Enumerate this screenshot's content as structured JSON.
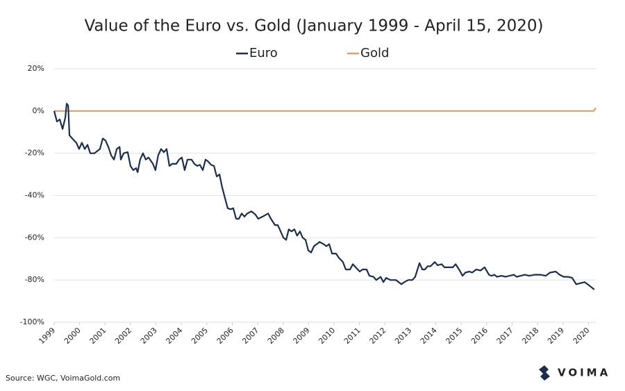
{
  "chart_data": {
    "type": "line",
    "title": "Value of the Euro vs. Gold (January 1999 - April 15, 2020)",
    "source": "Source: WGC, VoimaGold.com",
    "logo": "VOIMA",
    "legend": "top",
    "grid": true,
    "xlim": [
      1999,
      2020.29
    ],
    "xticks": [
      1999,
      2000,
      2001,
      2002,
      2003,
      2004,
      2005,
      2006,
      2007,
      2008,
      2009,
      2010,
      2011,
      2012,
      2013,
      2014,
      2015,
      2016,
      2017,
      2018,
      2019,
      2020
    ],
    "ylim": [
      -100,
      20
    ],
    "yticks": [
      {
        "value": 20,
        "label": "20%"
      },
      {
        "value": 0,
        "label": "0%"
      },
      {
        "value": -20,
        "label": "-20%"
      },
      {
        "value": -40,
        "label": "-40%"
      },
      {
        "value": -60,
        "label": "-60%"
      },
      {
        "value": -80,
        "label": "-80%"
      },
      {
        "value": -100,
        "label": "-100%"
      }
    ],
    "series": [
      {
        "name": "Euro",
        "color": "#1c2e4a",
        "x": [
          1999.0,
          1999.11,
          1999.22,
          1999.33,
          1999.44,
          1999.49,
          1999.55,
          1999.6,
          1999.71,
          1999.87,
          1999.98,
          2000.09,
          2000.2,
          2000.31,
          2000.42,
          2000.58,
          2000.69,
          2000.8,
          2000.91,
          2001.02,
          2001.13,
          2001.24,
          2001.35,
          2001.46,
          2001.57,
          2001.62,
          2001.73,
          2001.89,
          2002.0,
          2002.11,
          2002.22,
          2002.28,
          2002.38,
          2002.49,
          2002.6,
          2002.71,
          2002.88,
          2002.98,
          2003.09,
          2003.2,
          2003.31,
          2003.42,
          2003.53,
          2003.64,
          2003.8,
          2003.91,
          2004.02,
          2004.13,
          2004.24,
          2004.4,
          2004.51,
          2004.62,
          2004.73,
          2004.84,
          2004.95,
          2005.06,
          2005.17,
          2005.28,
          2005.39,
          2005.5,
          2005.6,
          2005.71,
          2005.82,
          2005.93,
          2006.04,
          2006.15,
          2006.26,
          2006.37,
          2006.48,
          2006.59,
          2006.75,
          2006.91,
          2007.02,
          2007.19,
          2007.41,
          2007.52,
          2007.68,
          2007.79,
          2007.9,
          2008.01,
          2008.12,
          2008.22,
          2008.33,
          2008.44,
          2008.55,
          2008.66,
          2008.77,
          2008.88,
          2008.99,
          2009.1,
          2009.21,
          2009.32,
          2009.43,
          2009.59,
          2009.7,
          2009.81,
          2009.92,
          2010.08,
          2010.19,
          2010.35,
          2010.46,
          2010.63,
          2010.74,
          2010.85,
          2011.01,
          2011.12,
          2011.28,
          2011.39,
          2011.55,
          2011.66,
          2011.83,
          2011.94,
          2012.05,
          2012.21,
          2012.43,
          2012.54,
          2012.65,
          2012.76,
          2012.92,
          2013.08,
          2013.19,
          2013.36,
          2013.47,
          2013.57,
          2013.68,
          2013.79,
          2013.96,
          2014.07,
          2014.23,
          2014.34,
          2014.5,
          2014.67,
          2014.78,
          2014.94,
          2015.05,
          2015.16,
          2015.32,
          2015.43,
          2015.59,
          2015.76,
          2015.92,
          2016.09,
          2016.19,
          2016.3,
          2016.41,
          2016.58,
          2016.74,
          2016.9,
          2017.07,
          2017.18,
          2017.34,
          2017.5,
          2017.67,
          2017.89,
          2018.1,
          2018.32,
          2018.49,
          2018.71,
          2018.87,
          2019.03,
          2019.2,
          2019.36,
          2019.52,
          2019.69,
          2019.85,
          2020.02,
          2020.23
        ],
        "values": [
          0,
          -5,
          -4,
          -8.5,
          -3,
          3.5,
          2.5,
          -11.5,
          -13,
          -15,
          -18,
          -15,
          -18,
          -16,
          -20,
          -20,
          -19,
          -18,
          -13,
          -14,
          -17,
          -21,
          -23,
          -18,
          -17,
          -23,
          -20,
          -19.5,
          -26,
          -28,
          -27,
          -29,
          -23,
          -20,
          -23,
          -22,
          -25,
          -28,
          -21,
          -18,
          -19.5,
          -18,
          -26,
          -25,
          -25,
          -23,
          -22,
          -28,
          -23,
          -23,
          -25,
          -26,
          -25.5,
          -28,
          -23,
          -24,
          -25.5,
          -26,
          -31,
          -30,
          -36,
          -41,
          -46,
          -46.5,
          -46,
          -51,
          -51,
          -48.5,
          -50,
          -48.5,
          -47.5,
          -49,
          -51,
          -50,
          -48.5,
          -51,
          -54,
          -54,
          -57,
          -60,
          -61,
          -56,
          -57,
          -56,
          -59,
          -57,
          -60,
          -61,
          -66,
          -67,
          -64,
          -63,
          -62,
          -63,
          -64,
          -63,
          -67.5,
          -67.5,
          -69.5,
          -71.5,
          -75,
          -75,
          -72.5,
          -74,
          -76,
          -75,
          -75,
          -78,
          -78.5,
          -80,
          -78.5,
          -81,
          -79,
          -80,
          -80,
          -81,
          -82,
          -81,
          -80,
          -80,
          -78.5,
          -72,
          -75,
          -75,
          -73.5,
          -73.5,
          -71.5,
          -73,
          -72.5,
          -74,
          -74,
          -74,
          -72.5,
          -75.5,
          -78,
          -76.5,
          -76,
          -76.5,
          -75,
          -75.5,
          -74,
          -77.5,
          -78,
          -77.5,
          -78.5,
          -78,
          -78.5,
          -78,
          -77.5,
          -78.5,
          -78,
          -77.5,
          -78,
          -77.5,
          -77.5,
          -78,
          -76.5,
          -76,
          -77.5,
          -78.5,
          -78.5,
          -79,
          -82,
          -81.5,
          -81,
          -82.5,
          -84.5
        ]
      },
      {
        "name": "Gold",
        "color": "#d4a373",
        "x": [
          1999.0,
          2020.2,
          2020.29
        ],
        "values": [
          0,
          0,
          1.5
        ]
      }
    ]
  }
}
